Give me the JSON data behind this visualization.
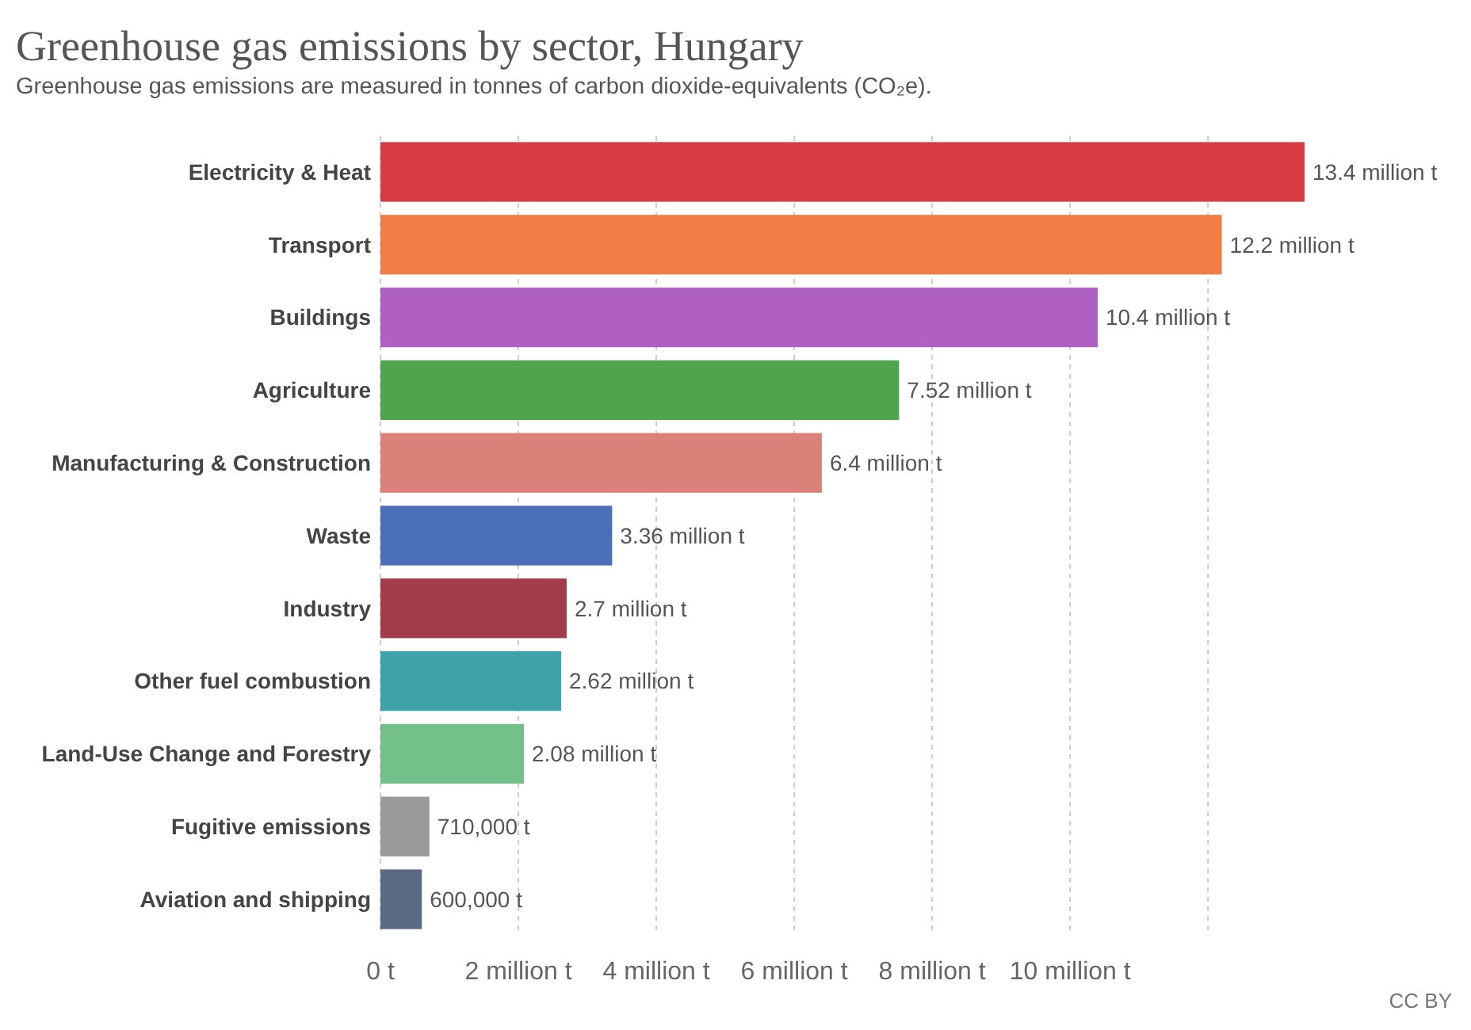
{
  "chart_data": {
    "type": "bar",
    "orientation": "horizontal",
    "title": "Greenhouse gas emissions by sector, Hungary",
    "subtitle": "Greenhouse gas emissions are measured in tonnes of carbon dioxide-equivalents (CO₂e).",
    "categories": [
      "Electricity & Heat",
      "Transport",
      "Buildings",
      "Agriculture",
      "Manufacturing & Construction",
      "Waste",
      "Industry",
      "Other fuel combustion",
      "Land-Use Change and Forestry",
      "Fugitive emissions",
      "Aviation and shipping"
    ],
    "values": [
      13400000,
      12200000,
      10400000,
      7520000,
      6400000,
      3360000,
      2700000,
      2620000,
      2080000,
      710000,
      600000
    ],
    "colors": [
      "#d73c45",
      "#ef7d45",
      "#b05fc3",
      "#4ea54e",
      "#dc807a",
      "#4a6fb8",
      "#a33d4b",
      "#3ea2ab",
      "#74c08a",
      "#999999",
      "#5a6a85"
    ],
    "value_labels": [
      "13.4 million t",
      "12.2 million t",
      "10.4 million t",
      "7.52 million t",
      "6.4 million t",
      "3.36 million t",
      "2.7 million t",
      "2.62 million t",
      "2.08 million t",
      "710,000 t",
      "600,000 t"
    ],
    "xlim": [
      0,
      13400000
    ],
    "xticks": [
      {
        "value": 0,
        "label": "0 t"
      },
      {
        "value": 2000000,
        "label": "2 million t"
      },
      {
        "value": 4000000,
        "label": "4 million t"
      },
      {
        "value": 6000000,
        "label": "6 million t"
      },
      {
        "value": 8000000,
        "label": "8 million t"
      },
      {
        "value": 10000000,
        "label": "10 million t"
      },
      {
        "value": 12000000,
        "label": null
      }
    ],
    "grid": "x",
    "annotations": [
      "CC BY"
    ]
  }
}
